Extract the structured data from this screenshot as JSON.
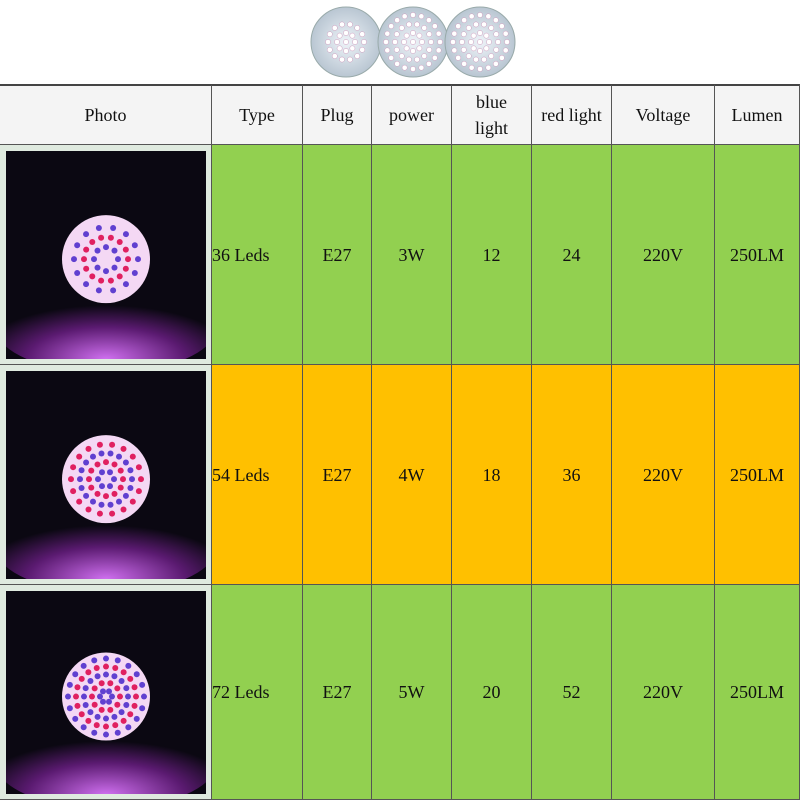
{
  "table": {
    "header": [
      "Photo",
      "Type",
      "Plug",
      "power",
      "blue light",
      "red light",
      "Voltage",
      "Lumen"
    ],
    "rows": [
      [
        "36 Leds",
        "E27",
        "3W",
        12,
        24,
        "220V",
        "250LM"
      ],
      [
        "54 Leds",
        "E27",
        "4W",
        18,
        36,
        "220V",
        "250LM"
      ],
      [
        "72 Leds",
        "E27",
        "5W",
        20,
        52,
        "220V",
        "250LM"
      ]
    ]
  }
}
